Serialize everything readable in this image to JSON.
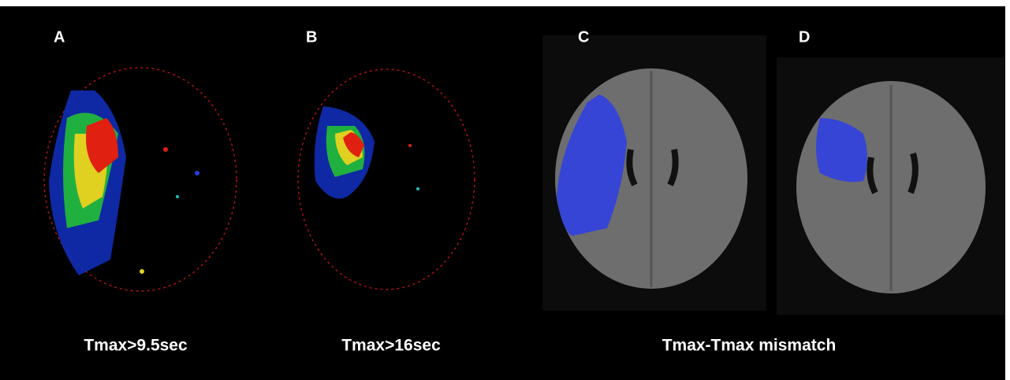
{
  "panels": [
    {
      "label": "A"
    },
    {
      "label": "B"
    },
    {
      "label": "C"
    },
    {
      "label": "D"
    }
  ],
  "captions": [
    "Tmax>9.5sec",
    "Tmax>16sec",
    "Tmax-Tmax mismatch"
  ]
}
